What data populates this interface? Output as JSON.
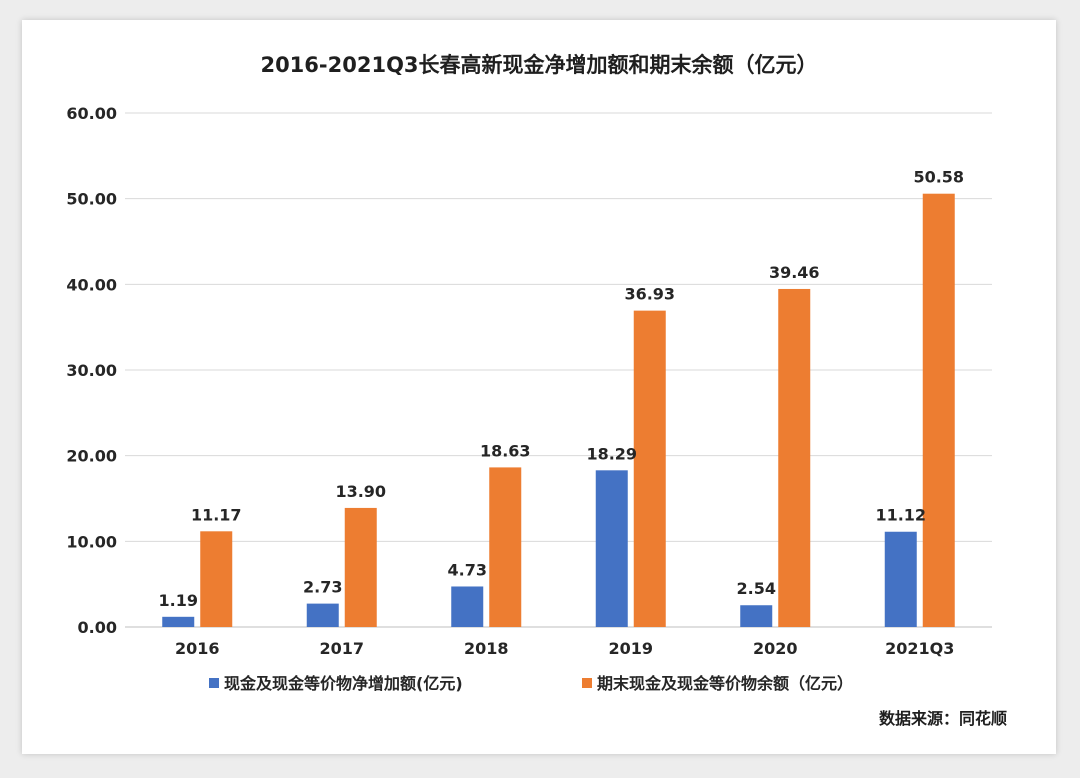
{
  "chart_data": {
    "type": "bar",
    "title": "2016-2021Q3长春高新现金净增加额和期末余额（亿元）",
    "categories": [
      "2016",
      "2017",
      "2018",
      "2019",
      "2020",
      "2021Q3"
    ],
    "series": [
      {
        "name": "现金及现金等价物净增加额(亿元)",
        "color": "#4472c4",
        "values": [
          1.19,
          2.73,
          4.73,
          18.29,
          2.54,
          11.12
        ],
        "labels": [
          "1.19",
          "2.73",
          "4.73",
          "18.29",
          "2.54",
          "11.12"
        ]
      },
      {
        "name": "期末现金及现金等价物余额（亿元）",
        "color": "#ed7d31",
        "values": [
          11.17,
          13.9,
          18.63,
          36.93,
          39.46,
          50.58
        ],
        "labels": [
          "11.17",
          "13.90",
          "18.63",
          "36.93",
          "39.46",
          "50.58"
        ]
      }
    ],
    "yticks": [
      "0.00",
      "10.00",
      "20.00",
      "30.00",
      "40.00",
      "50.00",
      "60.00"
    ],
    "ylim": [
      0,
      60
    ],
    "grid": true,
    "legend_position": "bottom"
  },
  "source": "数据来源：同花顺"
}
